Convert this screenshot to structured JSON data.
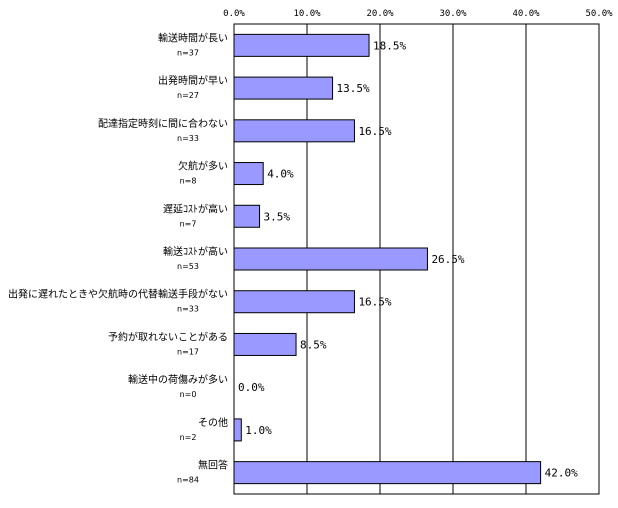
{
  "chart_data": {
    "type": "bar",
    "orientation": "horizontal",
    "categories": [
      "輸送時間が長い",
      "出発時間が早い",
      "配達指定時刻に間に合わない",
      "欠航が多い",
      "遅延ｺｽﾄが高い",
      "輸送ｺｽﾄが高い",
      "出発に遅れたときや欠航時の代替輸送手段がない",
      "予約が取れないことがある",
      "輸送中の荷傷みが多い",
      "その他",
      "無回答"
    ],
    "n_labels": [
      "n=37",
      "n=27",
      "n=33",
      "n=8",
      "n=7",
      "n=53",
      "n=33",
      "n=17",
      "n=0",
      "n=2",
      "n=84"
    ],
    "values": [
      18.5,
      13.5,
      16.5,
      4.0,
      3.5,
      26.5,
      16.5,
      8.5,
      0.0,
      1.0,
      42.0
    ],
    "data_labels": [
      "18.5%",
      "13.5%",
      "16.5%",
      "4.0%",
      "3.5%",
      "26.5%",
      "16.5%",
      "8.5%",
      "0.0%",
      "1.0%",
      "42.0%"
    ],
    "tick_labels": [
      "0.0%",
      "10.0%",
      "20.0%",
      "30.0%",
      "40.0%",
      "50.0%"
    ],
    "xlim": [
      0,
      50
    ],
    "grid": true,
    "legend": "none",
    "bar_color": "#9999ff",
    "title": "",
    "xlabel": "",
    "ylabel": ""
  }
}
